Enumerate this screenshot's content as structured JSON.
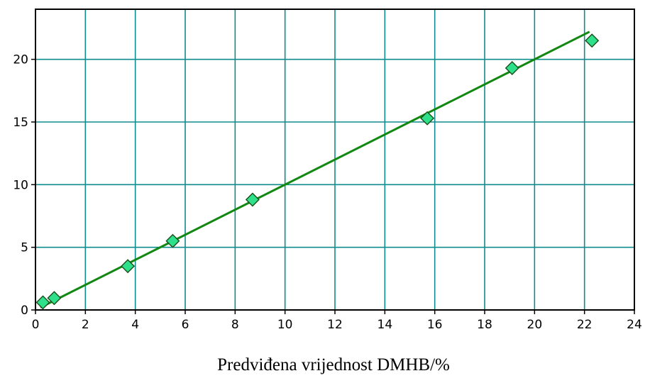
{
  "chart_data": {
    "type": "scatter",
    "title": "",
    "xlabel": "Predviđena vrijednost DMHB/%",
    "ylabel": "",
    "xlim": [
      0,
      24
    ],
    "ylim": [
      0,
      24
    ],
    "x_ticks": [
      "0",
      "2",
      "4",
      "6",
      "8",
      "10",
      "12",
      "14",
      "16",
      "18",
      "20",
      "22",
      "24"
    ],
    "y_ticks": [
      "0",
      "5",
      "10",
      "15",
      "20"
    ],
    "grid": true,
    "legend": "none",
    "series": [
      {
        "kind": "scatter",
        "marker": "diamond",
        "color": "#2fe08a",
        "edge_color": "#1a4d1a",
        "points": [
          {
            "x": 0.3,
            "y": 0.6
          },
          {
            "x": 0.75,
            "y": 0.95
          },
          {
            "x": 3.7,
            "y": 3.5
          },
          {
            "x": 5.5,
            "y": 5.5
          },
          {
            "x": 8.7,
            "y": 8.8
          },
          {
            "x": 15.7,
            "y": 15.3
          },
          {
            "x": 19.1,
            "y": 19.3
          },
          {
            "x": 22.3,
            "y": 21.5
          }
        ]
      },
      {
        "kind": "line",
        "color": "#118811",
        "points": [
          {
            "x": 0.2,
            "y": 0.2
          },
          {
            "x": 22.2,
            "y": 22.2
          }
        ]
      }
    ],
    "colors": {
      "grid": "#0f8c8c",
      "frame": "#000000"
    }
  }
}
